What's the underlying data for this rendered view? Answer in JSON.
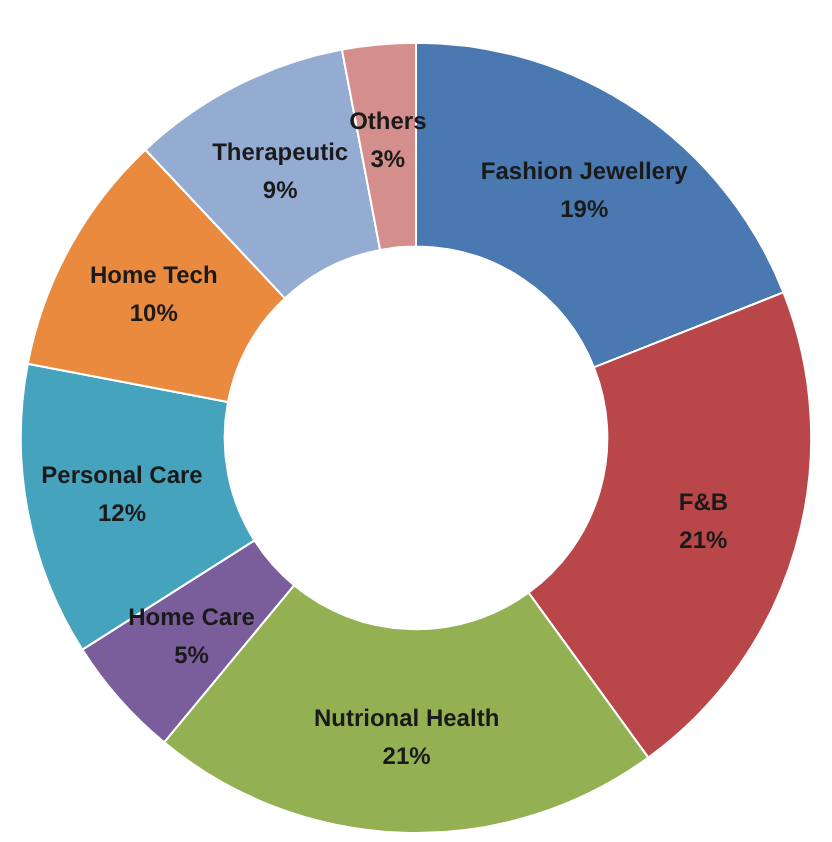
{
  "chart_data": {
    "type": "donut",
    "categories": [
      "Fashion Jewellery",
      "F&B",
      "Nutrional Health",
      "Home Care",
      "Personal Care",
      "Home Tech",
      "Therapeutic",
      "Others"
    ],
    "values": [
      19,
      21,
      21,
      5,
      12,
      10,
      9,
      3
    ],
    "colors": [
      "#4a78b0",
      "#b9474a",
      "#93b153",
      "#7a5e9c",
      "#46a3bd",
      "#e98a3f",
      "#94acd2",
      "#d48f8d"
    ],
    "value_labels": [
      "19%",
      "21%",
      "21%",
      "5%",
      "12%",
      "10%",
      "9%",
      "3%"
    ]
  }
}
